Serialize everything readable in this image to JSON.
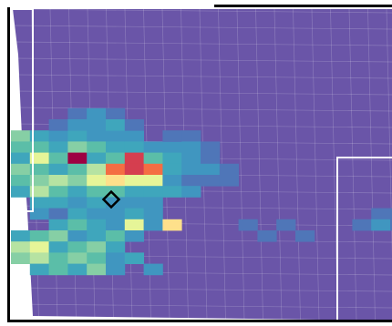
{
  "title": "",
  "colors": {
    "background": "#ffffff",
    "base": "#6a55a8",
    "boundary": "#ffffff",
    "frame": "#000000",
    "marker": "#000000"
  },
  "palette": {
    "low": "#6a55a8",
    "c1": "#4f76b8",
    "c2": "#4096c0",
    "c3": "#3fa6bc",
    "c4": "#5bbea8",
    "c5": "#86cfa5",
    "c6": "#b6e3a2",
    "c7": "#e6f598",
    "c8": "#fee08b",
    "c9": "#fdae61",
    "c10": "#f46d43",
    "c11": "#d53e4f",
    "high": "#9e0142"
  },
  "heat_cells": [
    [
      0,
      6,
      "c5"
    ],
    [
      0,
      7,
      "c4"
    ],
    [
      0,
      8,
      "c3"
    ],
    [
      0,
      9,
      "c5"
    ],
    [
      0,
      10,
      "c4"
    ],
    [
      0,
      11,
      "c3"
    ],
    [
      1,
      6,
      "c3"
    ],
    [
      1,
      7,
      "c4"
    ],
    [
      1,
      8,
      "c7"
    ],
    [
      1,
      9,
      "c4"
    ],
    [
      1,
      10,
      "c5"
    ],
    [
      1,
      11,
      "c6"
    ],
    [
      1,
      12,
      "c3"
    ],
    [
      2,
      6,
      "c2"
    ],
    [
      2,
      7,
      "c3"
    ],
    [
      2,
      8,
      "c4"
    ],
    [
      2,
      9,
      "c3"
    ],
    [
      2,
      10,
      "c6"
    ],
    [
      2,
      11,
      "c4"
    ],
    [
      2,
      12,
      "c3"
    ],
    [
      3,
      6,
      "c3"
    ],
    [
      3,
      7,
      "c5"
    ],
    [
      3,
      8,
      "high"
    ],
    [
      3,
      9,
      "c4"
    ],
    [
      3,
      10,
      "c5"
    ],
    [
      3,
      11,
      "c3"
    ],
    [
      3,
      12,
      "c2"
    ],
    [
      4,
      6,
      "c2"
    ],
    [
      4,
      7,
      "c4"
    ],
    [
      4,
      8,
      "c3"
    ],
    [
      4,
      9,
      "c6"
    ],
    [
      4,
      10,
      "c7"
    ],
    [
      4,
      11,
      "c4"
    ],
    [
      4,
      12,
      "c3"
    ],
    [
      5,
      6,
      "c2"
    ],
    [
      5,
      7,
      "c3"
    ],
    [
      5,
      8,
      "c4"
    ],
    [
      5,
      9,
      "c10"
    ],
    [
      5,
      10,
      "c8"
    ],
    [
      5,
      11,
      "c4"
    ],
    [
      5,
      12,
      "c2"
    ],
    [
      6,
      6,
      "c2"
    ],
    [
      6,
      7,
      "c3"
    ],
    [
      6,
      8,
      "c11"
    ],
    [
      6,
      9,
      "c11"
    ],
    [
      6,
      10,
      "c7"
    ],
    [
      6,
      11,
      "c3"
    ],
    [
      6,
      12,
      "c2"
    ],
    [
      7,
      7,
      "c2"
    ],
    [
      7,
      8,
      "c4"
    ],
    [
      7,
      9,
      "c10"
    ],
    [
      7,
      10,
      "c7"
    ],
    [
      7,
      11,
      "c3"
    ],
    [
      7,
      12,
      "c2"
    ],
    [
      8,
      7,
      "c2"
    ],
    [
      8,
      8,
      "c3"
    ],
    [
      8,
      9,
      "c3"
    ],
    [
      8,
      10,
      "c2"
    ],
    [
      8,
      11,
      "c3"
    ],
    [
      9,
      8,
      "c2"
    ],
    [
      9,
      9,
      "c2"
    ],
    [
      9,
      10,
      "c1"
    ],
    [
      9,
      11,
      "c2"
    ],
    [
      10,
      8,
      "c1"
    ],
    [
      10,
      9,
      "c2"
    ],
    [
      10,
      10,
      "c1"
    ],
    [
      1,
      13,
      "c2"
    ],
    [
      2,
      13,
      "c1"
    ],
    [
      3,
      13,
      "c3"
    ],
    [
      4,
      13,
      "c2"
    ],
    [
      5,
      13,
      "c2"
    ],
    [
      6,
      13,
      "c3"
    ],
    [
      7,
      13,
      "c2"
    ],
    [
      2,
      14,
      "c3"
    ],
    [
      3,
      14,
      "c4"
    ],
    [
      4,
      14,
      "c3"
    ],
    [
      5,
      14,
      "c2"
    ],
    [
      6,
      14,
      "c7"
    ],
    [
      7,
      14,
      "c2"
    ],
    [
      8,
      14,
      "c8"
    ],
    [
      0,
      15,
      "c3"
    ],
    [
      1,
      15,
      "c4"
    ],
    [
      2,
      15,
      "c5"
    ],
    [
      3,
      15,
      "c2"
    ],
    [
      4,
      15,
      "c3"
    ],
    [
      5,
      15,
      "c4"
    ],
    [
      6,
      15,
      "c2"
    ],
    [
      0,
      16,
      "c6"
    ],
    [
      1,
      16,
      "c7"
    ],
    [
      2,
      16,
      "c3"
    ],
    [
      3,
      16,
      "c4"
    ],
    [
      4,
      16,
      "c5"
    ],
    [
      5,
      16,
      "c3"
    ],
    [
      0,
      17,
      "c5"
    ],
    [
      1,
      17,
      "c6"
    ],
    [
      2,
      17,
      "c4"
    ],
    [
      3,
      17,
      "c5"
    ],
    [
      4,
      17,
      "c4"
    ],
    [
      5,
      17,
      "c2"
    ],
    [
      6,
      17,
      "c3"
    ],
    [
      1,
      18,
      "c3"
    ],
    [
      2,
      18,
      "c4"
    ],
    [
      3,
      18,
      "c3"
    ],
    [
      4,
      18,
      "c5"
    ],
    [
      5,
      18,
      "c2"
    ],
    [
      7,
      18,
      "c2"
    ],
    [
      3,
      4,
      "c1"
    ],
    [
      4,
      4,
      "c2"
    ],
    [
      5,
      4,
      "c1"
    ],
    [
      2,
      5,
      "c1"
    ],
    [
      3,
      5,
      "c2"
    ],
    [
      4,
      5,
      "c2"
    ],
    [
      5,
      5,
      "c3"
    ],
    [
      6,
      5,
      "c1"
    ],
    [
      8,
      6,
      "c1"
    ],
    [
      9,
      6,
      "c1"
    ],
    [
      9,
      7,
      "c2"
    ],
    [
      10,
      7,
      "c1"
    ],
    [
      11,
      9,
      "c1"
    ],
    [
      11,
      10,
      "c1"
    ],
    [
      12,
      14,
      "c1"
    ],
    [
      13,
      15,
      "c1"
    ],
    [
      14,
      14,
      "c1"
    ],
    [
      15,
      15,
      "c1"
    ],
    [
      19,
      13,
      "c1"
    ],
    [
      20,
      13,
      "c1"
    ],
    [
      18,
      14,
      "c1"
    ],
    [
      19,
      14,
      "c2"
    ],
    [
      20,
      14,
      "c1"
    ]
  ]
}
